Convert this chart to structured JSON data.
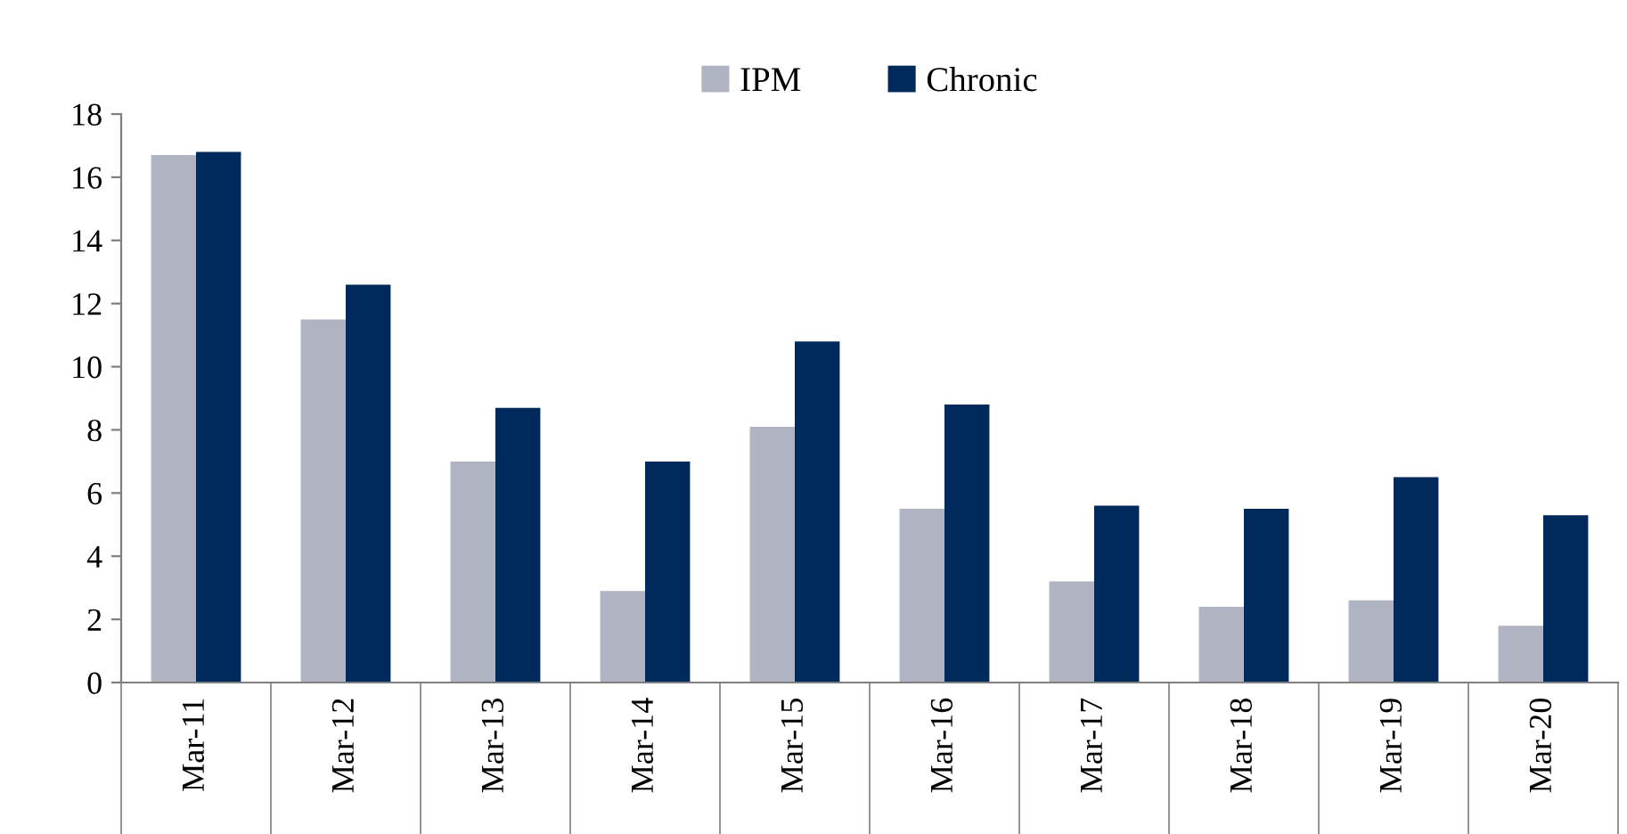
{
  "chart_data": {
    "type": "bar",
    "categories": [
      "Mar-11",
      "Mar-12",
      "Mar-13",
      "Mar-14",
      "Mar-15",
      "Mar-16",
      "Mar-17",
      "Mar-18",
      "Mar-19",
      "Mar-20"
    ],
    "series": [
      {
        "name": "IPM",
        "color": "#b0b3c1",
        "values": [
          16.7,
          11.5,
          7.0,
          2.9,
          8.1,
          5.5,
          3.2,
          2.4,
          2.6,
          1.8
        ]
      },
      {
        "name": "Chronic",
        "color": "#002a5c",
        "values": [
          16.8,
          12.6,
          8.7,
          7.0,
          10.8,
          8.8,
          5.6,
          5.5,
          6.5,
          5.3
        ]
      }
    ],
    "ylim": [
      0,
      18
    ],
    "yticks": [
      0,
      2,
      4,
      6,
      8,
      10,
      12,
      14,
      16,
      18
    ],
    "grid": false,
    "legend": "top"
  }
}
